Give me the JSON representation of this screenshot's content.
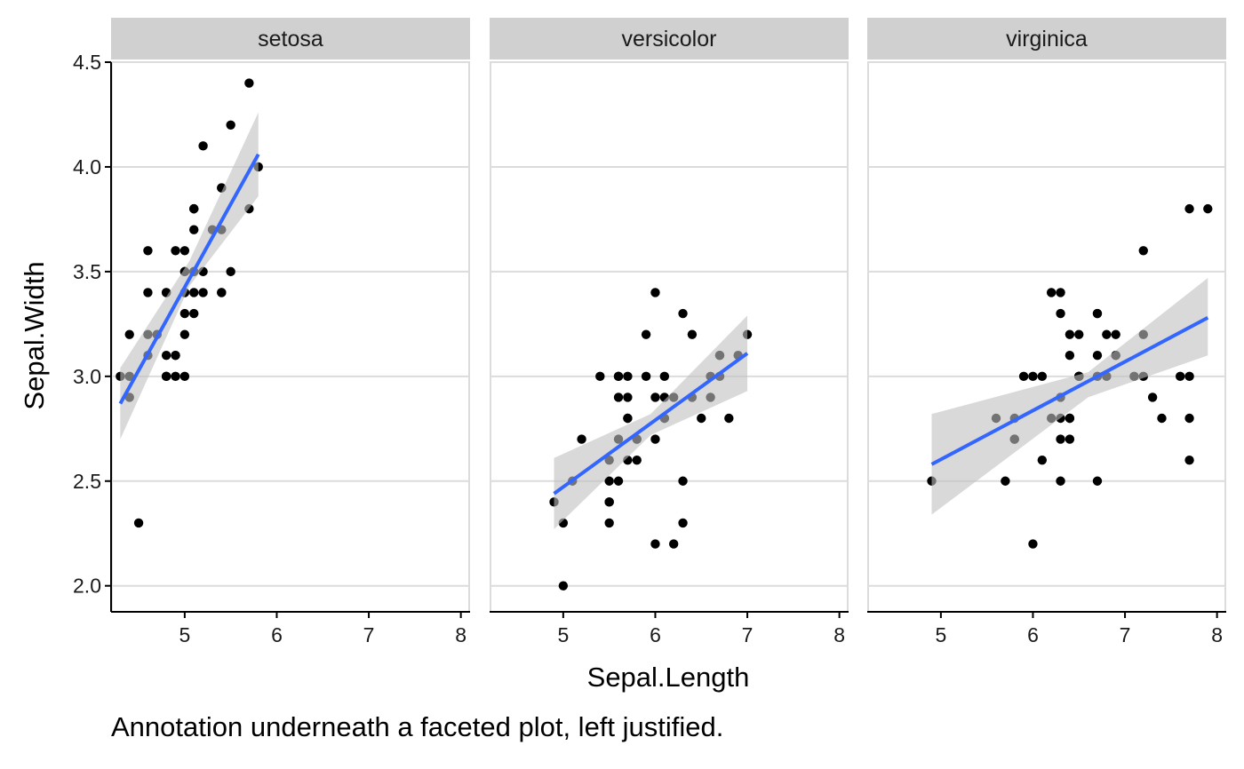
{
  "chart_data": {
    "type": "scatter",
    "facets": [
      "setosa",
      "versicolor",
      "virginica"
    ],
    "xlabel": "Sepal.Length",
    "ylabel": "Sepal.Width",
    "xlim": [
      4.2,
      8.1
    ],
    "ylim": [
      1.88,
      4.5
    ],
    "x_ticks": [
      5,
      6,
      7,
      8
    ],
    "y_ticks": [
      2.0,
      2.5,
      3.0,
      3.5,
      4.0,
      4.5
    ],
    "y_tick_labels": [
      "2.0",
      "2.5",
      "3.0",
      "3.5",
      "4.0",
      "4.5"
    ],
    "caption": "Annotation underneath a faceted plot, left justified.",
    "grid": "horizontal major",
    "colors": {
      "points": "#000000",
      "fit_line": "#3366ff",
      "ribbon": "#bfbfbf",
      "strip_fill": "#d0d0d0",
      "grid": "#dcdcdc",
      "axis": "#000000"
    },
    "series": [
      {
        "name": "setosa",
        "points": [
          [
            5.1,
            3.5
          ],
          [
            4.9,
            3.0
          ],
          [
            4.7,
            3.2
          ],
          [
            4.6,
            3.1
          ],
          [
            5.0,
            3.6
          ],
          [
            5.4,
            3.9
          ],
          [
            4.6,
            3.4
          ],
          [
            5.0,
            3.4
          ],
          [
            4.4,
            2.9
          ],
          [
            4.9,
            3.1
          ],
          [
            5.4,
            3.7
          ],
          [
            4.8,
            3.4
          ],
          [
            4.8,
            3.0
          ],
          [
            4.3,
            3.0
          ],
          [
            5.8,
            4.0
          ],
          [
            5.7,
            4.4
          ],
          [
            5.4,
            3.9
          ],
          [
            5.1,
            3.5
          ],
          [
            5.7,
            3.8
          ],
          [
            5.1,
            3.8
          ],
          [
            5.4,
            3.4
          ],
          [
            5.1,
            3.7
          ],
          [
            4.6,
            3.6
          ],
          [
            5.1,
            3.3
          ],
          [
            4.8,
            3.4
          ],
          [
            5.0,
            3.0
          ],
          [
            5.0,
            3.4
          ],
          [
            5.2,
            3.5
          ],
          [
            5.2,
            3.4
          ],
          [
            4.7,
            3.2
          ],
          [
            4.8,
            3.1
          ],
          [
            5.4,
            3.4
          ],
          [
            5.2,
            4.1
          ],
          [
            5.5,
            4.2
          ],
          [
            4.9,
            3.1
          ],
          [
            5.0,
            3.2
          ],
          [
            5.5,
            3.5
          ],
          [
            4.9,
            3.6
          ],
          [
            4.4,
            3.0
          ],
          [
            5.1,
            3.4
          ],
          [
            5.0,
            3.5
          ],
          [
            4.5,
            2.3
          ],
          [
            4.4,
            3.2
          ],
          [
            5.0,
            3.5
          ],
          [
            5.1,
            3.8
          ],
          [
            4.8,
            3.0
          ],
          [
            5.1,
            3.8
          ],
          [
            4.6,
            3.2
          ],
          [
            5.3,
            3.7
          ],
          [
            5.0,
            3.3
          ]
        ],
        "fit": {
          "x": [
            4.3,
            5.8
          ],
          "y": [
            2.87,
            4.06
          ]
        },
        "ribbon": {
          "x": [
            4.3,
            5.05,
            5.8
          ],
          "lower": [
            2.7,
            3.43,
            3.86
          ],
          "upper": [
            3.04,
            3.55,
            4.26
          ]
        }
      },
      {
        "name": "versicolor",
        "points": [
          [
            7.0,
            3.2
          ],
          [
            6.4,
            3.2
          ],
          [
            6.9,
            3.1
          ],
          [
            5.5,
            2.3
          ],
          [
            6.5,
            2.8
          ],
          [
            5.7,
            2.8
          ],
          [
            6.3,
            3.3
          ],
          [
            4.9,
            2.4
          ],
          [
            6.6,
            2.9
          ],
          [
            5.2,
            2.7
          ],
          [
            5.0,
            2.0
          ],
          [
            5.9,
            3.0
          ],
          [
            6.0,
            2.2
          ],
          [
            6.1,
            2.9
          ],
          [
            5.6,
            2.9
          ],
          [
            6.7,
            3.1
          ],
          [
            5.6,
            3.0
          ],
          [
            5.8,
            2.7
          ],
          [
            6.2,
            2.2
          ],
          [
            5.6,
            2.5
          ],
          [
            5.9,
            3.2
          ],
          [
            6.1,
            2.8
          ],
          [
            6.3,
            2.5
          ],
          [
            6.1,
            2.8
          ],
          [
            6.4,
            2.9
          ],
          [
            6.6,
            3.0
          ],
          [
            6.8,
            2.8
          ],
          [
            6.7,
            3.0
          ],
          [
            6.0,
            2.9
          ],
          [
            5.7,
            2.6
          ],
          [
            5.5,
            2.4
          ],
          [
            5.5,
            2.4
          ],
          [
            5.8,
            2.7
          ],
          [
            6.0,
            2.7
          ],
          [
            5.4,
            3.0
          ],
          [
            6.0,
            3.4
          ],
          [
            6.7,
            3.1
          ],
          [
            6.3,
            2.3
          ],
          [
            5.6,
            3.0
          ],
          [
            5.5,
            2.5
          ],
          [
            5.5,
            2.6
          ],
          [
            6.1,
            3.0
          ],
          [
            5.8,
            2.6
          ],
          [
            5.0,
            2.3
          ],
          [
            5.6,
            2.7
          ],
          [
            5.7,
            3.0
          ],
          [
            5.7,
            2.9
          ],
          [
            6.2,
            2.9
          ],
          [
            5.1,
            2.5
          ],
          [
            5.7,
            2.8
          ]
        ],
        "fit": {
          "x": [
            4.9,
            7.0
          ],
          "y": [
            2.44,
            3.11
          ]
        },
        "ribbon": {
          "x": [
            4.9,
            5.95,
            7.0
          ],
          "lower": [
            2.27,
            2.72,
            2.93
          ],
          "upper": [
            2.61,
            2.82,
            3.29
          ]
        }
      },
      {
        "name": "virginica",
        "points": [
          [
            6.3,
            3.3
          ],
          [
            5.8,
            2.7
          ],
          [
            7.1,
            3.0
          ],
          [
            6.3,
            2.9
          ],
          [
            6.5,
            3.0
          ],
          [
            7.6,
            3.0
          ],
          [
            4.9,
            2.5
          ],
          [
            7.3,
            2.9
          ],
          [
            6.7,
            2.5
          ],
          [
            7.2,
            3.6
          ],
          [
            6.5,
            3.2
          ],
          [
            6.4,
            2.7
          ],
          [
            6.8,
            3.0
          ],
          [
            5.7,
            2.5
          ],
          [
            5.8,
            2.8
          ],
          [
            6.4,
            3.2
          ],
          [
            6.5,
            3.0
          ],
          [
            7.7,
            3.8
          ],
          [
            7.7,
            2.6
          ],
          [
            6.0,
            2.2
          ],
          [
            6.9,
            3.2
          ],
          [
            5.6,
            2.8
          ],
          [
            7.7,
            2.8
          ],
          [
            6.3,
            2.7
          ],
          [
            6.7,
            3.3
          ],
          [
            7.2,
            3.2
          ],
          [
            6.2,
            2.8
          ],
          [
            6.1,
            3.0
          ],
          [
            6.4,
            2.8
          ],
          [
            7.2,
            3.0
          ],
          [
            7.4,
            2.8
          ],
          [
            7.9,
            3.8
          ],
          [
            6.4,
            2.8
          ],
          [
            6.3,
            2.8
          ],
          [
            6.1,
            2.6
          ],
          [
            7.7,
            3.0
          ],
          [
            6.3,
            3.4
          ],
          [
            6.4,
            3.1
          ],
          [
            6.0,
            3.0
          ],
          [
            6.9,
            3.1
          ],
          [
            6.7,
            3.1
          ],
          [
            6.9,
            3.1
          ],
          [
            5.8,
            2.7
          ],
          [
            6.8,
            3.2
          ],
          [
            6.7,
            3.3
          ],
          [
            6.7,
            3.0
          ],
          [
            6.3,
            2.5
          ],
          [
            6.5,
            3.0
          ],
          [
            6.2,
            3.4
          ],
          [
            5.9,
            3.0
          ]
        ],
        "fit": {
          "x": [
            4.9,
            7.9
          ],
          "y": [
            2.58,
            3.28
          ]
        },
        "ribbon": {
          "x": [
            4.9,
            6.6,
            7.9
          ],
          "lower": [
            2.34,
            2.9,
            3.1
          ],
          "upper": [
            2.82,
            3.02,
            3.47
          ]
        }
      }
    ]
  }
}
